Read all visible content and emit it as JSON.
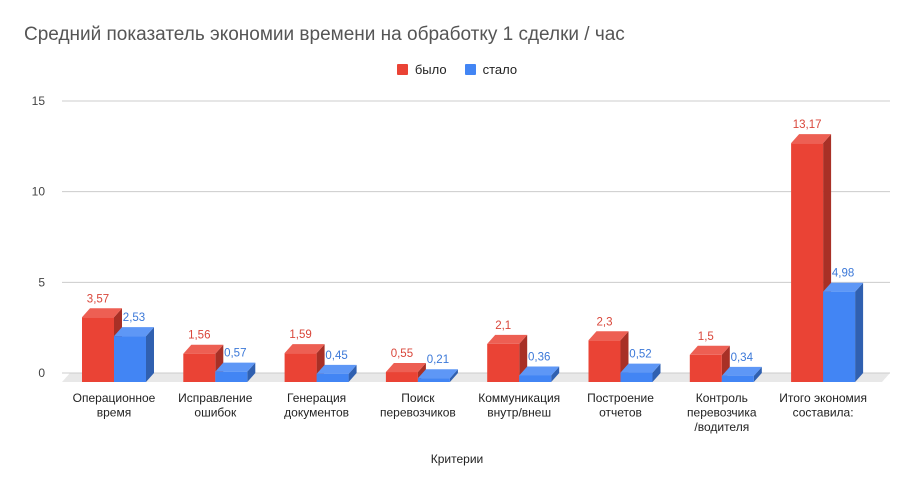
{
  "chart_data": {
    "type": "bar",
    "title": "Средний показатель экономии времени на обработку 1 сделки / час",
    "xlabel": "Критерии",
    "ylabel": "",
    "ylim": [
      0,
      15
    ],
    "yticks": [
      0,
      5,
      10,
      15
    ],
    "grid": true,
    "legend_position": "top",
    "categories": [
      [
        "Операционное",
        "время"
      ],
      [
        "Исправление",
        "ошибок"
      ],
      [
        "Генерация",
        "документов"
      ],
      [
        "Поиск",
        "перевозчиков"
      ],
      [
        "Коммуникация",
        "внутр/внеш"
      ],
      [
        "Построение",
        "отчетов"
      ],
      [
        "Контроль",
        "перевозчика",
        "/водителя"
      ],
      [
        "Итого экономия",
        "составила:"
      ]
    ],
    "series": [
      {
        "name": "было",
        "color": "#ea4335",
        "values": [
          3.57,
          1.56,
          1.59,
          0.55,
          2.1,
          2.3,
          1.5,
          13.17
        ],
        "labels": [
          "3,57",
          "1,56",
          "1,59",
          "0,55",
          "2,1",
          "2,3",
          "1,5",
          "13,17"
        ]
      },
      {
        "name": "стало",
        "color": "#4285f4",
        "values": [
          2.53,
          0.57,
          0.45,
          0.21,
          0.36,
          0.52,
          0.34,
          4.98
        ],
        "labels": [
          "2,53",
          "0,57",
          "0,45",
          "0,21",
          "0,36",
          "0,52",
          "0,34",
          "4,98"
        ]
      }
    ]
  }
}
